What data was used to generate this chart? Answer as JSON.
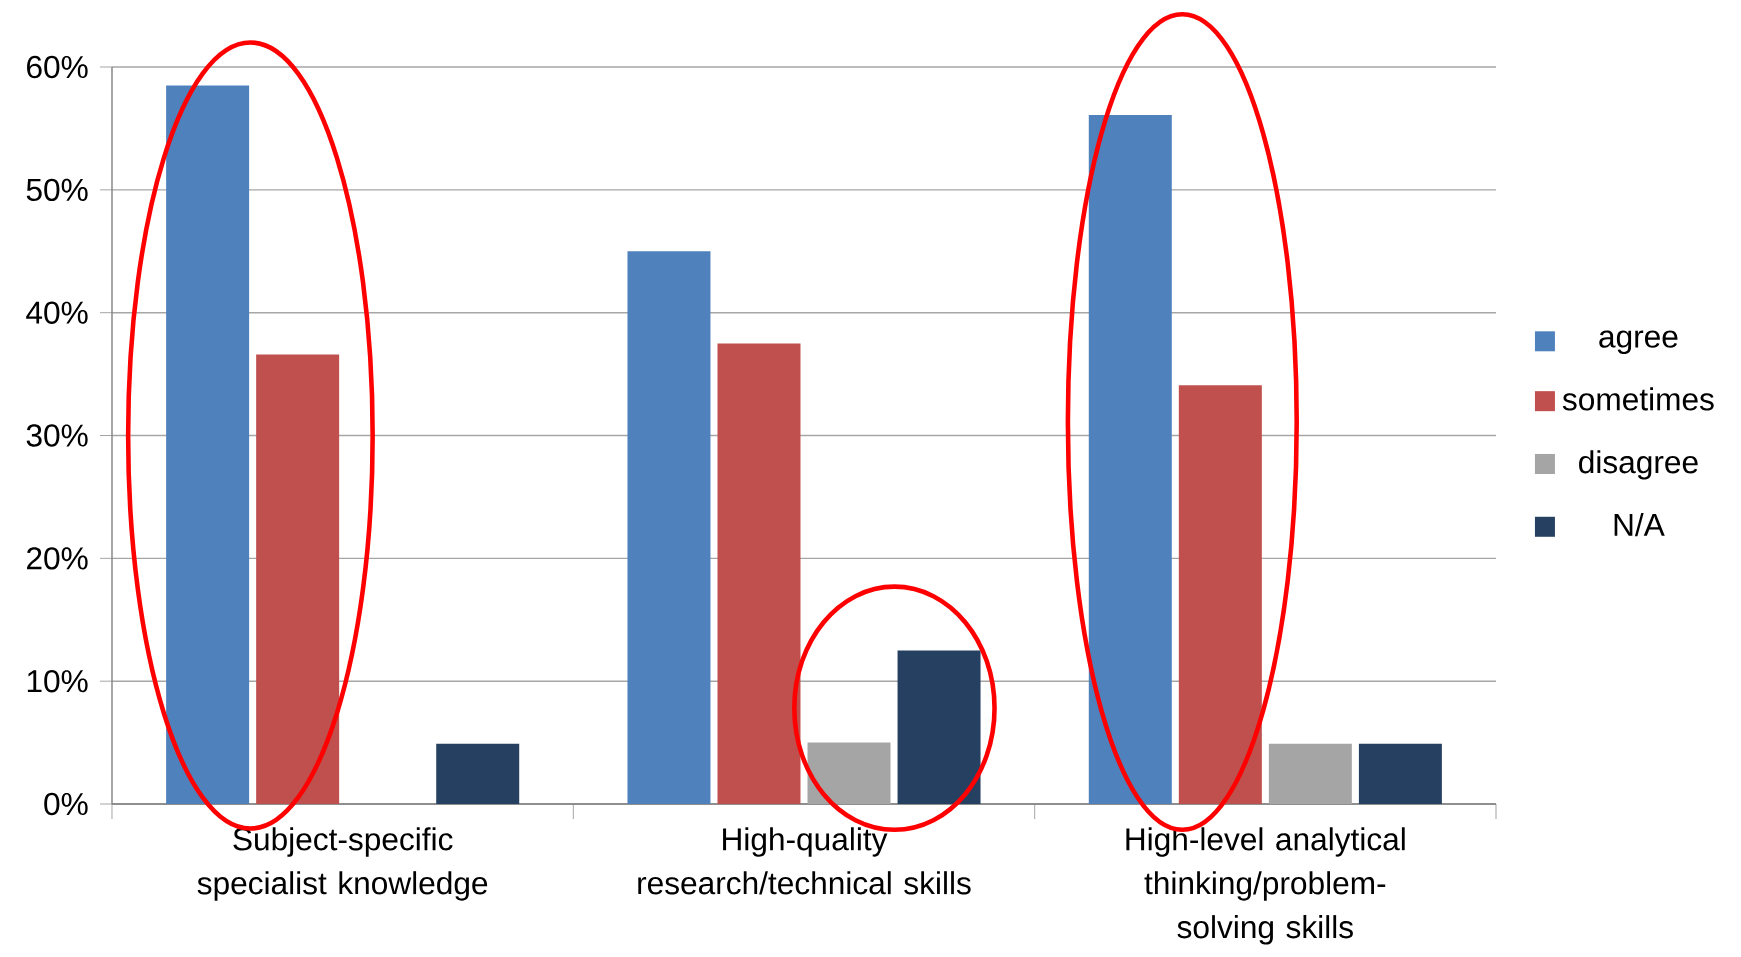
{
  "chart_data": {
    "type": "bar",
    "categories": [
      "Subject-specific specialist knowledge",
      "High-quality research/technical skills",
      "High-level analytical thinking/problem-solving skills"
    ],
    "series": [
      {
        "name": "agree",
        "color": "#4f81bd",
        "values": [
          58.5,
          45,
          56.1
        ]
      },
      {
        "name": "sometimes",
        "color": "#c0504d",
        "values": [
          36.6,
          37.5,
          34.1
        ]
      },
      {
        "name": "disagree",
        "color": "#a5a5a5",
        "values": [
          0,
          5,
          4.9
        ]
      },
      {
        "name": "N/A",
        "color": "#254061",
        "values": [
          4.9,
          12.5,
          4.9
        ]
      }
    ],
    "ylim": [
      0,
      60
    ],
    "yticks": [
      {
        "value": 0,
        "label": "0%"
      },
      {
        "value": 10,
        "label": "10%"
      },
      {
        "value": 20,
        "label": "20%"
      },
      {
        "value": 30,
        "label": "30%"
      },
      {
        "value": 40,
        "label": "40%"
      },
      {
        "value": 50,
        "label": "50%"
      },
      {
        "value": 60,
        "label": "60%"
      }
    ],
    "grid": "y",
    "legend": "right"
  }
}
